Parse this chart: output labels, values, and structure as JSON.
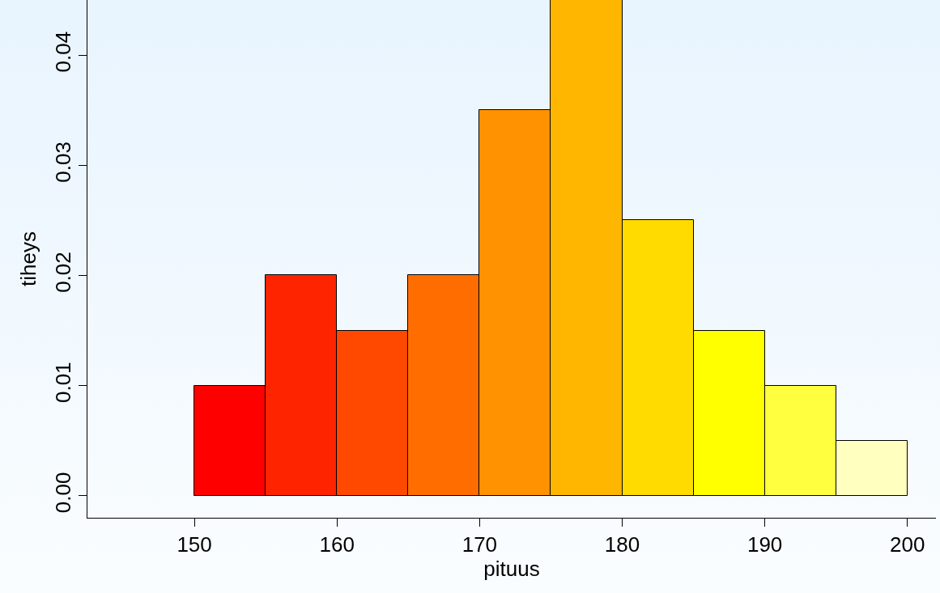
{
  "chart_data": {
    "type": "histogram",
    "xlabel": "pituus",
    "ylabel": "tiheys",
    "bins": [
      150,
      155,
      160,
      165,
      170,
      175,
      180,
      185,
      190,
      195,
      200
    ],
    "values": [
      0.01,
      0.02,
      0.015,
      0.02,
      0.035,
      0.045,
      0.025,
      0.015,
      0.01,
      0.005
    ],
    "colors": [
      "#ff0000",
      "#ff2400",
      "#ff4900",
      "#ff6d00",
      "#ff9200",
      "#ffb600",
      "#ffdb00",
      "#ffff00",
      "#ffff40",
      "#ffffbf"
    ],
    "xlim": [
      142.5,
      202
    ],
    "xticks": [
      150,
      160,
      170,
      180,
      190,
      200
    ],
    "ylim": [
      -0.002,
      0.045
    ],
    "yticks": [
      {
        "value": 0,
        "label": "0.00"
      },
      {
        "value": 0.01,
        "label": "0.01"
      },
      {
        "value": 0.02,
        "label": "0.02"
      },
      {
        "value": 0.03,
        "label": "0.03"
      },
      {
        "value": 0.04,
        "label": "0.04"
      }
    ],
    "grid": false
  }
}
